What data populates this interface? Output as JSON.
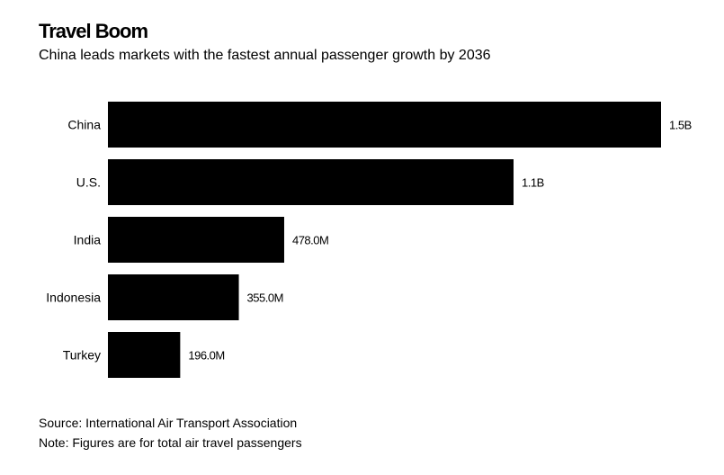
{
  "chart_data": {
    "type": "bar",
    "orientation": "horizontal",
    "title": "Travel Boom",
    "subtitle": "China leads markets with the fastest annual passenger growth by 2036",
    "categories": [
      "China",
      "U.S.",
      "India",
      "Indonesia",
      "Turkey"
    ],
    "values": [
      1500000000,
      1100000000,
      478000000,
      355000000,
      196000000
    ],
    "value_labels": [
      "1.5B",
      "1.1B",
      "478.0M",
      "355.0M",
      "196.0M"
    ],
    "xlabel": "",
    "ylabel": "",
    "xlim": [
      0,
      1500000000
    ],
    "grid": false,
    "legend": "none",
    "bar_color": "#000000",
    "source": "Source: International Air Transport Association",
    "note": "Note: Figures are for total air travel passengers"
  }
}
